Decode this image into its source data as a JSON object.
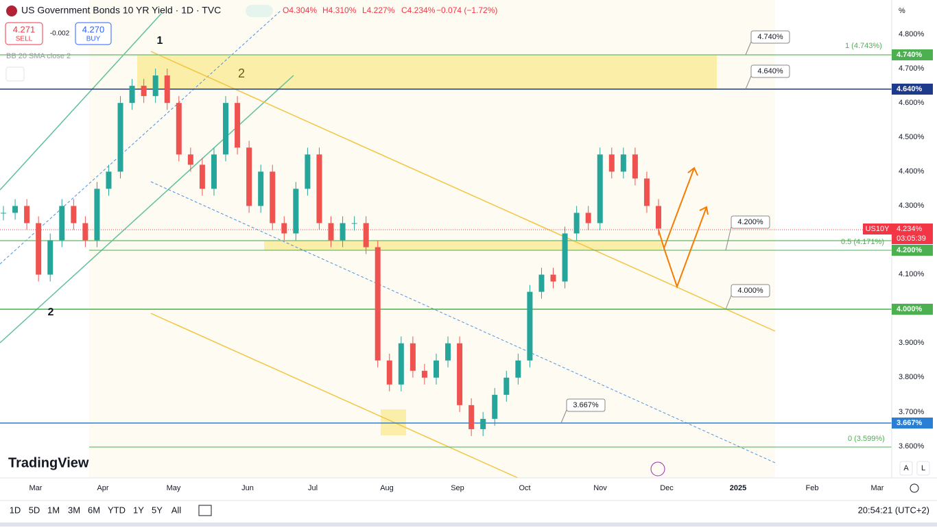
{
  "header": {
    "title": "US Government Bonds 10 YR Yield · 1D · TVC",
    "ohlc": {
      "open": "O4.304%",
      "high": "H4.310%",
      "low": "L4.227%",
      "close": "C4.234%",
      "change": "−0.074 (−1.72%)"
    }
  },
  "trade": {
    "sell_price": "4.271",
    "sell": "SELL",
    "spread": "-0.002",
    "buy_price": "4.270",
    "buy": "BUY"
  },
  "indicator": "BB 20 SMA close 2",
  "price_axis": {
    "unit": "%",
    "labels": [
      "4.800%",
      "4.700%",
      "4.600%",
      "4.500%",
      "4.400%",
      "4.300%",
      "4.100%",
      "3.900%",
      "3.800%",
      "3.700%",
      "3.600%"
    ]
  },
  "levels": [
    {
      "label": "4.740%",
      "callout": "4.740%"
    },
    {
      "label": "4.640%",
      "callout": "4.640%"
    },
    {
      "label": "4.200%",
      "callout": "4.200%"
    },
    {
      "label": "4.000%",
      "callout": "4.000%"
    },
    {
      "label": "3.667%",
      "callout": "3.667%"
    }
  ],
  "current": {
    "symbol": "US10Y",
    "price": "4.234%",
    "countdown": "03:05:39"
  },
  "fib": [
    "1 (4.743%)",
    "0.5 (4.171%)",
    "0 (3.599%)"
  ],
  "waves": [
    "1",
    "2",
    "2"
  ],
  "time_axis": [
    "Mar",
    "Apr",
    "May",
    "Jun",
    "Jul",
    "Aug",
    "Sep",
    "Oct",
    "Nov",
    "Dec",
    "2025",
    "Feb",
    "Mar"
  ],
  "closes": [
    4.28,
    4.3,
    4.25,
    4.1,
    4.2,
    4.3,
    4.25,
    4.2,
    4.35,
    4.4,
    4.6,
    4.65,
    4.62,
    4.68,
    4.6,
    4.45,
    4.42,
    4.35,
    4.45,
    4.6,
    4.47,
    4.3,
    4.4,
    4.25,
    4.22,
    4.35,
    4.45,
    4.25,
    4.2,
    4.25,
    4.25,
    4.18,
    3.85,
    3.78,
    3.9,
    3.82,
    3.8,
    3.85,
    3.9,
    3.72,
    3.65,
    3.68,
    3.75,
    3.8,
    3.85,
    4.05,
    4.1,
    4.08,
    4.22,
    4.28,
    4.25,
    4.45,
    4.4,
    4.45,
    4.38,
    4.3,
    4.234
  ],
  "toolbar": {
    "ranges": [
      "1D",
      "5D",
      "1M",
      "3M",
      "6M",
      "YTD",
      "1Y",
      "5Y",
      "All"
    ],
    "clock": "20:54:21 (UTC+2)",
    "auto": "A",
    "log": "L"
  },
  "logo": "TradingView"
}
